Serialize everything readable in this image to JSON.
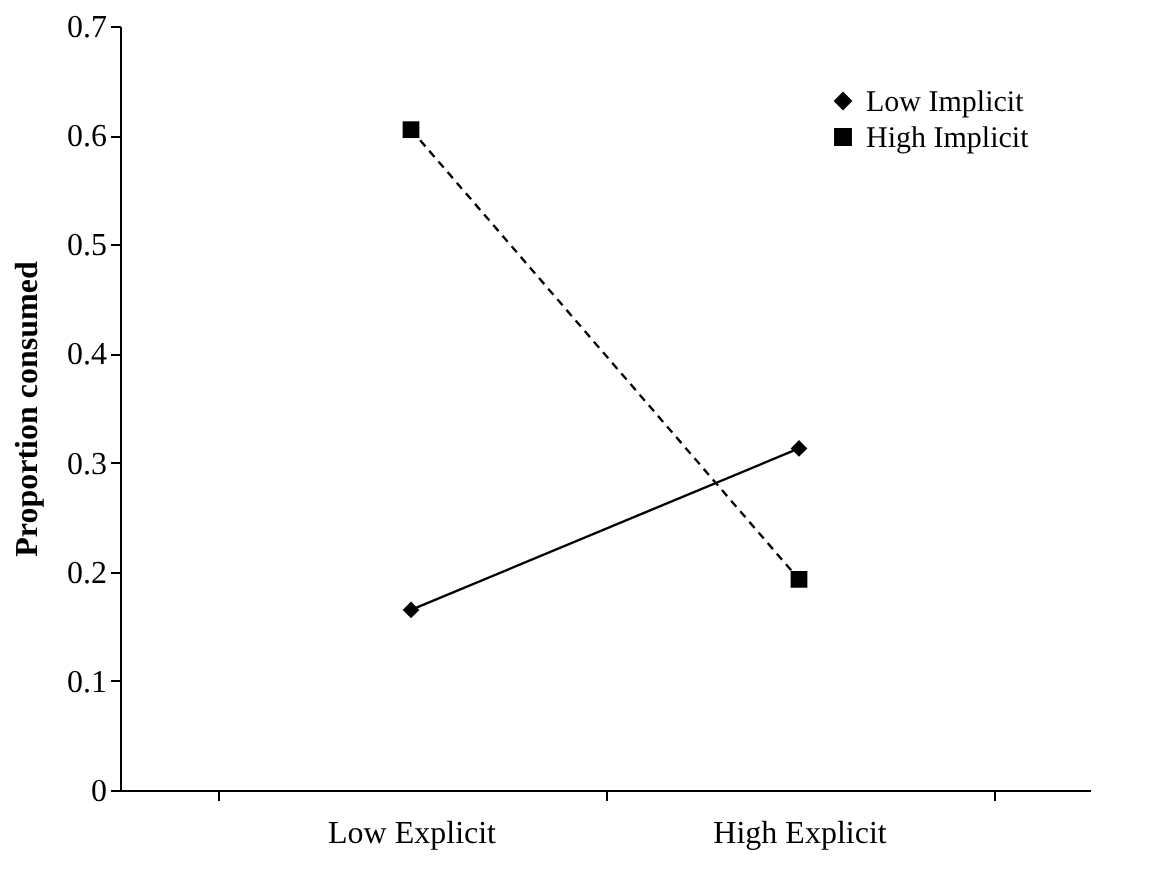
{
  "chart_data": {
    "type": "line",
    "ylabel": "Proportion consumed",
    "categories": [
      "Low Explicit",
      "High Explicit"
    ],
    "series": [
      {
        "name": "Low Implicit",
        "color": "#000000",
        "values": [
          0.165,
          0.313
        ],
        "marker": "diamond",
        "line_style": "solid"
      },
      {
        "name": "High Implicit",
        "color": "#000000",
        "values": [
          0.605,
          0.193
        ],
        "marker": "square",
        "line_style": "dashed"
      }
    ],
    "ylim": [
      0,
      0.7
    ],
    "yticks": [
      0,
      0.1,
      0.2,
      0.3,
      0.4,
      0.5,
      0.6,
      0.7
    ],
    "grid": false,
    "legend": "top right"
  }
}
